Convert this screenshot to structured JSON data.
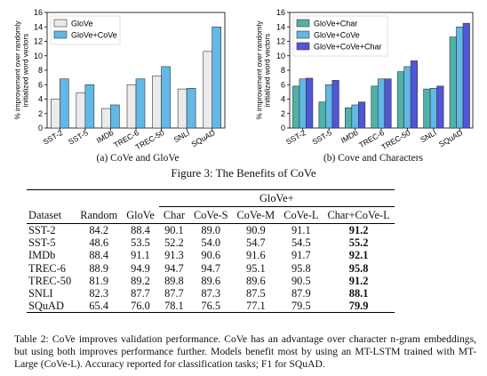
{
  "figure": {
    "caption": "Figure 3: The Benefits of CoVe",
    "panels": [
      {
        "subcaption": "(a) CoVe and GloVe"
      },
      {
        "subcaption": "(b) Cove and Characters"
      }
    ]
  },
  "chart_data": [
    {
      "type": "bar",
      "categories": [
        "SST-2",
        "SST-5",
        "IMDb",
        "TREC-6",
        "TREC-50",
        "SNLI",
        "SQuAD"
      ],
      "series": [
        {
          "name": "GloVe",
          "values": [
            4.0,
            4.9,
            2.7,
            6.0,
            7.2,
            5.4,
            10.6
          ]
        },
        {
          "name": "GloVe+CoVe",
          "values": [
            6.8,
            6.0,
            3.2,
            6.8,
            8.5,
            5.5,
            14.0
          ]
        }
      ],
      "ylabel": "% improvement over randomly initialized word vectors",
      "ylim": [
        0,
        16
      ],
      "yticks": [
        0,
        2,
        4,
        6,
        8,
        10,
        12,
        14,
        16
      ],
      "legend": "top-left",
      "colors": [
        "#ebebeb",
        "#62b8e6"
      ]
    },
    {
      "type": "bar",
      "categories": [
        "SST-2",
        "SST-5",
        "IMDb",
        "TREC-6",
        "TREC-50",
        "SNLI",
        "SQuAD"
      ],
      "series": [
        {
          "name": "GloVe+Char",
          "values": [
            5.8,
            3.6,
            2.8,
            5.8,
            7.8,
            5.4,
            12.6
          ]
        },
        {
          "name": "GloVe+CoVe",
          "values": [
            6.8,
            6.0,
            3.2,
            6.8,
            8.5,
            5.5,
            14.0
          ]
        },
        {
          "name": "GloVe+CoVe+Char",
          "values": [
            6.9,
            6.6,
            3.6,
            6.8,
            9.3,
            5.8,
            14.5
          ]
        }
      ],
      "ylabel": "% improvement over randomly initialized word vectors",
      "ylim": [
        0,
        16
      ],
      "yticks": [
        0,
        2,
        4,
        6,
        8,
        10,
        12,
        14,
        16
      ],
      "legend": "top-left",
      "colors": [
        "#4fb2a8",
        "#62b8e6",
        "#5056d6"
      ]
    }
  ],
  "table": {
    "group_header": "GloVe+",
    "headers": [
      "Dataset",
      "Random",
      "GloVe",
      "Char",
      "CoVe-S",
      "CoVe-M",
      "CoVe-L",
      "Char+CoVe-L"
    ],
    "rows": [
      [
        "SST-2",
        "84.2",
        "88.4",
        "90.1",
        "89.0",
        "90.9",
        "91.1",
        "91.2"
      ],
      [
        "SST-5",
        "48.6",
        "53.5",
        "52.2",
        "54.0",
        "54.7",
        "54.5",
        "55.2"
      ],
      [
        "IMDb",
        "88.4",
        "91.1",
        "91.3",
        "90.6",
        "91.6",
        "91.7",
        "92.1"
      ],
      [
        "TREC-6",
        "88.9",
        "94.9",
        "94.7",
        "94.7",
        "95.1",
        "95.8",
        "95.8"
      ],
      [
        "TREC-50",
        "81.9",
        "89.2",
        "89.8",
        "89.6",
        "89.6",
        "90.5",
        "91.2"
      ],
      [
        "SNLI",
        "82.3",
        "87.7",
        "87.7",
        "87.3",
        "87.5",
        "87.9",
        "88.1"
      ],
      [
        "SQuAD",
        "65.4",
        "76.0",
        "78.1",
        "76.5",
        "77.1",
        "79.5",
        "79.9"
      ]
    ],
    "caption": "Table 2: CoVe improves validation performance. CoVe has an advantage over character n-gram embeddings, but using both improves performance further. Models benefit most by using an MT-LSTM trained with MT-Large (CoVe-L). Accuracy reported for classification tasks; F1 for SQuAD."
  }
}
